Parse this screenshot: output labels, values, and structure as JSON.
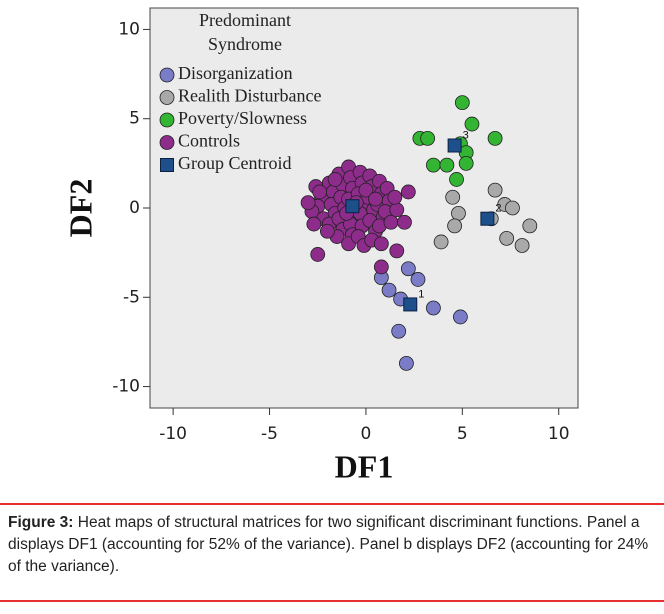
{
  "chart_data": {
    "type": "scatter",
    "xlabel": "DF1",
    "ylabel": "DF2",
    "legend_title": [
      "Predominant",
      "Syndrome"
    ],
    "legend": "upper left",
    "xlim": [
      -11.2,
      11
    ],
    "ylim": [
      -11.2,
      11.2
    ],
    "xticks": [
      -10,
      -5,
      0,
      5,
      10
    ],
    "yticks": [
      10,
      5,
      0,
      -5,
      -10
    ],
    "series": [
      {
        "name": "Disorganization",
        "color": "#7a7cc8",
        "marker": "circle",
        "x": [
          2.2,
          0.8,
          2.7,
          1.2,
          1.8,
          3.5,
          4.9,
          1.7,
          2.1
        ],
        "values": [
          -3.4,
          -3.9,
          -4.0,
          -4.6,
          -5.1,
          -5.6,
          -6.1,
          -6.9,
          -8.7
        ]
      },
      {
        "name": "Realith Disturbance",
        "color": "#a9a9a9",
        "marker": "circle",
        "x": [
          4.5,
          4.8,
          6.7,
          7.2,
          7.6,
          8.5,
          8.1,
          7.3,
          4.6,
          3.9,
          6.5
        ],
        "values": [
          0.6,
          -0.3,
          1.0,
          0.2,
          0,
          -1.0,
          -2.1,
          -1.7,
          -1.0,
          -1.9,
          -0.6
        ]
      },
      {
        "name": "Poverty/Slowness",
        "color": "#33b533",
        "marker": "circle",
        "x": [
          5.0,
          5.5,
          2.8,
          3.2,
          6.7,
          4.9,
          5.2,
          5.2,
          3.5,
          4.2,
          4.7
        ],
        "values": [
          5.9,
          4.7,
          3.9,
          3.9,
          3.9,
          3.6,
          3.1,
          2.5,
          2.4,
          2.4,
          1.6
        ]
      },
      {
        "name": "Controls",
        "color": "#8e2c8c",
        "marker": "circle",
        "x": [
          -2.6,
          -2.3,
          -2.5,
          -2.8,
          -2.2,
          -1.9,
          -1.7,
          -1.8,
          -1.6,
          -1.9,
          -1.4,
          -1.2,
          -1.3,
          -1.1,
          -1.4,
          -1.2,
          -1.5,
          -0.9,
          -0.8,
          -0.7,
          -0.9,
          -0.6,
          -0.8,
          -0.7,
          -0.9,
          -0.3,
          -0.2,
          -0.4,
          -0.1,
          -0.3,
          -0.2,
          -0.4,
          -0.1,
          0.2,
          0.3,
          0.1,
          0.4,
          0.2,
          0.5,
          0.3,
          0.7,
          0.8,
          0.6,
          0.9,
          0.7,
          1.1,
          1.2,
          1.0,
          1.3,
          -2.0,
          -2.4,
          -1.0,
          -0.5,
          -1.6,
          0.0,
          0.5,
          -2.5,
          0.8,
          0.8,
          1.6,
          2.0,
          2.2,
          1.6,
          1.5,
          -3.0,
          -2.7
        ],
        "values": [
          1.2,
          0.6,
          0.1,
          -0.2,
          -0.6,
          1.4,
          0.9,
          0.2,
          -0.3,
          -0.9,
          1.9,
          1.3,
          0.6,
          0.0,
          -0.6,
          -1.2,
          -1.6,
          2.3,
          1.7,
          1.1,
          0.5,
          -0.4,
          -0.9,
          -1.5,
          -2.0,
          2.0,
          1.4,
          0.8,
          0.2,
          -0.3,
          -1.0,
          -1.6,
          -2.1,
          1.8,
          1.2,
          0.6,
          -0.1,
          -0.7,
          -1.3,
          -1.8,
          1.5,
          0.8,
          0.2,
          -0.5,
          -1.0,
          1.1,
          0.4,
          -0.2,
          -0.8,
          -1.3,
          0.9,
          -0.3,
          0.3,
          1.6,
          1.0,
          0.5,
          -2.6,
          -3.3,
          -2.0,
          -2.4,
          -0.8,
          0.9,
          -0.1,
          0.6,
          0.3,
          -0.9
        ]
      },
      {
        "name": "Group Centroid",
        "color": "#1d4f8a",
        "marker": "square",
        "x": [
          2.3,
          6.3,
          4.6,
          -0.7
        ],
        "values": [
          -5.4,
          -0.6,
          3.5,
          0.1
        ],
        "point_labels": [
          "1",
          "2",
          "3",
          null
        ]
      }
    ]
  },
  "caption": {
    "label": "Figure 3:",
    "text": "Heat maps of structural matrices for two significant discriminant functions. Panel a displays DF1 (accounting for 52% of the variance). Panel b displays DF2 (accounting for 24% of the variance)."
  }
}
